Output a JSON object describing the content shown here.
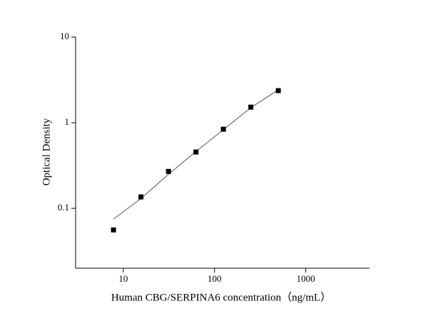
{
  "chart_data": {
    "type": "scatter",
    "xlabel": "Human CBG/SERPINA6 concentration（ng/mL）",
    "ylabel": "Optical Density",
    "x": [
      7.8,
      15.6,
      31.25,
      62.5,
      125,
      250,
      500
    ],
    "values": [
      0.056,
      0.136,
      0.27,
      0.455,
      0.84,
      1.52,
      2.37
    ],
    "color": "#000000",
    "fit": {
      "x": [
        7.8,
        15.6,
        31.25,
        62.5,
        125,
        250,
        500
      ],
      "values": [
        0.075,
        0.13,
        0.25,
        0.46,
        0.83,
        1.5,
        2.42
      ],
      "color": "#555555"
    },
    "xlim": [
      3,
      5000
    ],
    "ylim": [
      0.02,
      10
    ],
    "xticks": [
      10,
      100,
      1000
    ],
    "yticks": [
      {
        "value": 0.1,
        "label": "0.1"
      },
      1,
      10
    ],
    "xscale": "log",
    "yscale": "log",
    "grid": false
  }
}
